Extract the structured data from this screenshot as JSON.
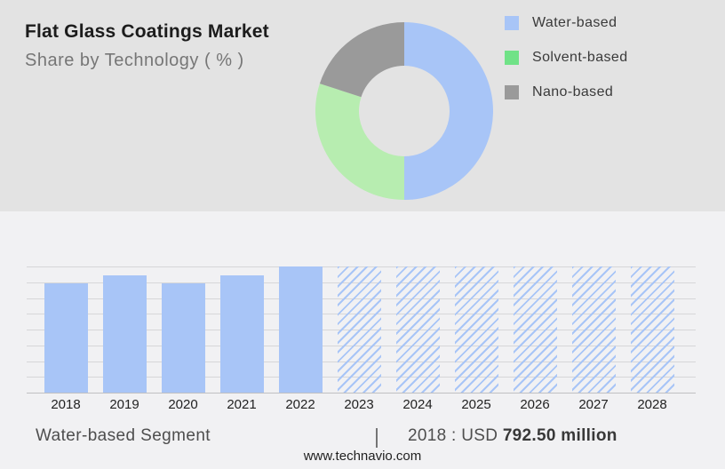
{
  "header": {
    "title": "Flat Glass Coatings Market",
    "subtitle": "Share by Technology ( % )"
  },
  "legend": {
    "items": [
      {
        "label": "Water-based",
        "color": "#a8c5f7"
      },
      {
        "label": "Solvent-based",
        "color": "#70e287"
      },
      {
        "label": "Nano-based",
        "color": "#9a9a9a"
      }
    ]
  },
  "chart_data": [
    {
      "type": "pie",
      "title": "Share by Technology ( % )",
      "donut": true,
      "start_angle_deg": 0,
      "legend_position": "right",
      "slices": [
        {
          "label": "Water-based",
          "value": 50,
          "color": "#a8c5f7"
        },
        {
          "label": "Solvent-based",
          "value": 30,
          "color": "#b7edb0"
        },
        {
          "label": "Nano-based",
          "value": 20,
          "color": "#9a9a9a"
        }
      ]
    },
    {
      "type": "bar",
      "categories": [
        "2018",
        "2019",
        "2020",
        "2021",
        "2022",
        "2023",
        "2024",
        "2025",
        "2026",
        "2027",
        "2028"
      ],
      "values_pct_of_max": [
        87,
        93,
        87,
        93,
        100,
        100,
        100,
        100,
        100,
        100,
        100
      ],
      "forecast_from": "2023",
      "bar_color": "#a8c5f7",
      "forecast_style": "diagonal-hatch",
      "gridline_count": 9,
      "xlabel": "",
      "ylabel": "",
      "known_value": {
        "year": "2018",
        "value": "USD 792.50 million"
      }
    }
  ],
  "caption": {
    "segment_label": "Water-based Segment",
    "separator": "|",
    "value_prefix": "2018 : USD ",
    "value_bold": "792.50 million"
  },
  "footer": {
    "website": "www.technavio.com"
  }
}
